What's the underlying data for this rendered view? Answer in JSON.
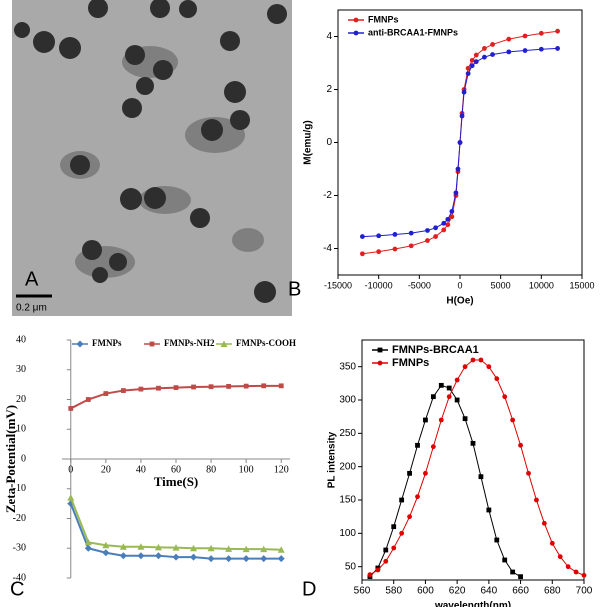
{
  "image_panel": {
    "panel_label": "A",
    "scale_bar": "0.2 μm"
  },
  "chart_data": [
    {
      "type": "line",
      "panel_label": "B",
      "xlabel": "H(Oe)",
      "ylabel": "M(emu/g)",
      "legend": "upper left",
      "x": [
        -12000,
        -10000,
        -8000,
        -6000,
        -4000,
        -3000,
        -2000,
        -1500,
        -1000,
        -500,
        -250,
        0,
        250,
        500,
        1000,
        1500,
        2000,
        3000,
        4000,
        6000,
        8000,
        10000,
        12000
      ],
      "series": [
        {
          "name": "FMNPs",
          "color": "#e02020",
          "marker": "circle",
          "values": [
            -4.2,
            -4.12,
            -4.02,
            -3.9,
            -3.7,
            -3.55,
            -3.3,
            -3.1,
            -2.8,
            -2.0,
            -1.1,
            0,
            1.1,
            2.0,
            2.8,
            3.1,
            3.3,
            3.55,
            3.7,
            3.9,
            4.02,
            4.12,
            4.2
          ]
        },
        {
          "name": "anti-BRCAA1-FMNPs",
          "color": "#2020d0",
          "marker": "circle",
          "values": [
            -3.55,
            -3.52,
            -3.47,
            -3.42,
            -3.32,
            -3.22,
            -3.05,
            -2.9,
            -2.6,
            -1.9,
            -1.0,
            0,
            1.0,
            1.9,
            2.6,
            2.9,
            3.05,
            3.22,
            3.32,
            3.42,
            3.47,
            3.52,
            3.55
          ]
        }
      ],
      "xlim": [
        -15000,
        15000
      ],
      "xticks": [
        -15000,
        -10000,
        -5000,
        0,
        5000,
        10000,
        15000
      ],
      "ylim": [
        -5,
        5
      ],
      "yticks": [
        -4,
        -2,
        0,
        2,
        4
      ]
    },
    {
      "type": "line",
      "panel_label": "C",
      "xlabel": "Time(S)",
      "ylabel": "Zeta-Potential(mV)",
      "legend": "top",
      "x": [
        0,
        10,
        20,
        30,
        40,
        50,
        60,
        70,
        80,
        90,
        100,
        110,
        120
      ],
      "series": [
        {
          "name": "FMNPs",
          "color": "#4a7ebb",
          "marker": "diamond",
          "values": [
            -15,
            -30,
            -31.5,
            -32.5,
            -32.5,
            -32.5,
            -33,
            -33,
            -33.5,
            -33.5,
            -33.5,
            -33.5,
            -33.5
          ]
        },
        {
          "name": "FMNPs-NH2",
          "color": "#be4b48",
          "marker": "square",
          "values": [
            17,
            20,
            22,
            23,
            23.5,
            23.8,
            24,
            24.2,
            24.3,
            24.4,
            24.5,
            24.6,
            24.6
          ]
        },
        {
          "name": "FMNPs-COOH",
          "color": "#98b954",
          "marker": "triangle",
          "values": [
            -13,
            -28,
            -29,
            -29.5,
            -29.5,
            -29.7,
            -29.8,
            -30,
            -30,
            -30.2,
            -30.3,
            -30.3,
            -30.5
          ]
        }
      ],
      "xlim": [
        -5,
        125
      ],
      "xticks": [
        0,
        20,
        40,
        60,
        80,
        100,
        120
      ],
      "ylim": [
        -40,
        40
      ],
      "yticks": [
        -40,
        -30,
        -20,
        -10,
        0,
        10,
        20,
        30,
        40
      ]
    },
    {
      "type": "scatter",
      "panel_label": "D",
      "xlabel": "wavelength(nm)",
      "ylabel": "PL intensity",
      "legend": "upper left",
      "series": [
        {
          "name": "FMNPs-BRCAA1",
          "color": "#000000",
          "marker": "square",
          "x": [
            565,
            570,
            575,
            580,
            585,
            590,
            595,
            600,
            605,
            610,
            615,
            620,
            625,
            630,
            635,
            640,
            645,
            650,
            655,
            660
          ],
          "values": [
            35,
            48,
            75,
            110,
            150,
            190,
            232,
            270,
            305,
            322,
            318,
            300,
            272,
            235,
            185,
            135,
            90,
            60,
            42,
            35
          ]
        },
        {
          "name": "FMNPs",
          "color": "#e00000",
          "marker": "circle",
          "x": [
            565,
            570,
            575,
            580,
            585,
            590,
            595,
            600,
            605,
            610,
            615,
            620,
            625,
            630,
            635,
            640,
            645,
            650,
            655,
            660,
            665,
            670,
            675,
            680,
            685,
            690,
            695,
            700
          ],
          "values": [
            38,
            45,
            58,
            78,
            100,
            125,
            155,
            190,
            230,
            270,
            305,
            330,
            350,
            360,
            360,
            350,
            332,
            305,
            270,
            232,
            190,
            150,
            115,
            85,
            65,
            50,
            42,
            37
          ]
        }
      ],
      "xlim": [
        560,
        700
      ],
      "xticks": [
        560,
        580,
        600,
        620,
        640,
        660,
        680,
        700
      ],
      "ylim": [
        30,
        390
      ],
      "yticks": [
        50,
        100,
        150,
        200,
        250,
        300,
        350
      ]
    }
  ]
}
